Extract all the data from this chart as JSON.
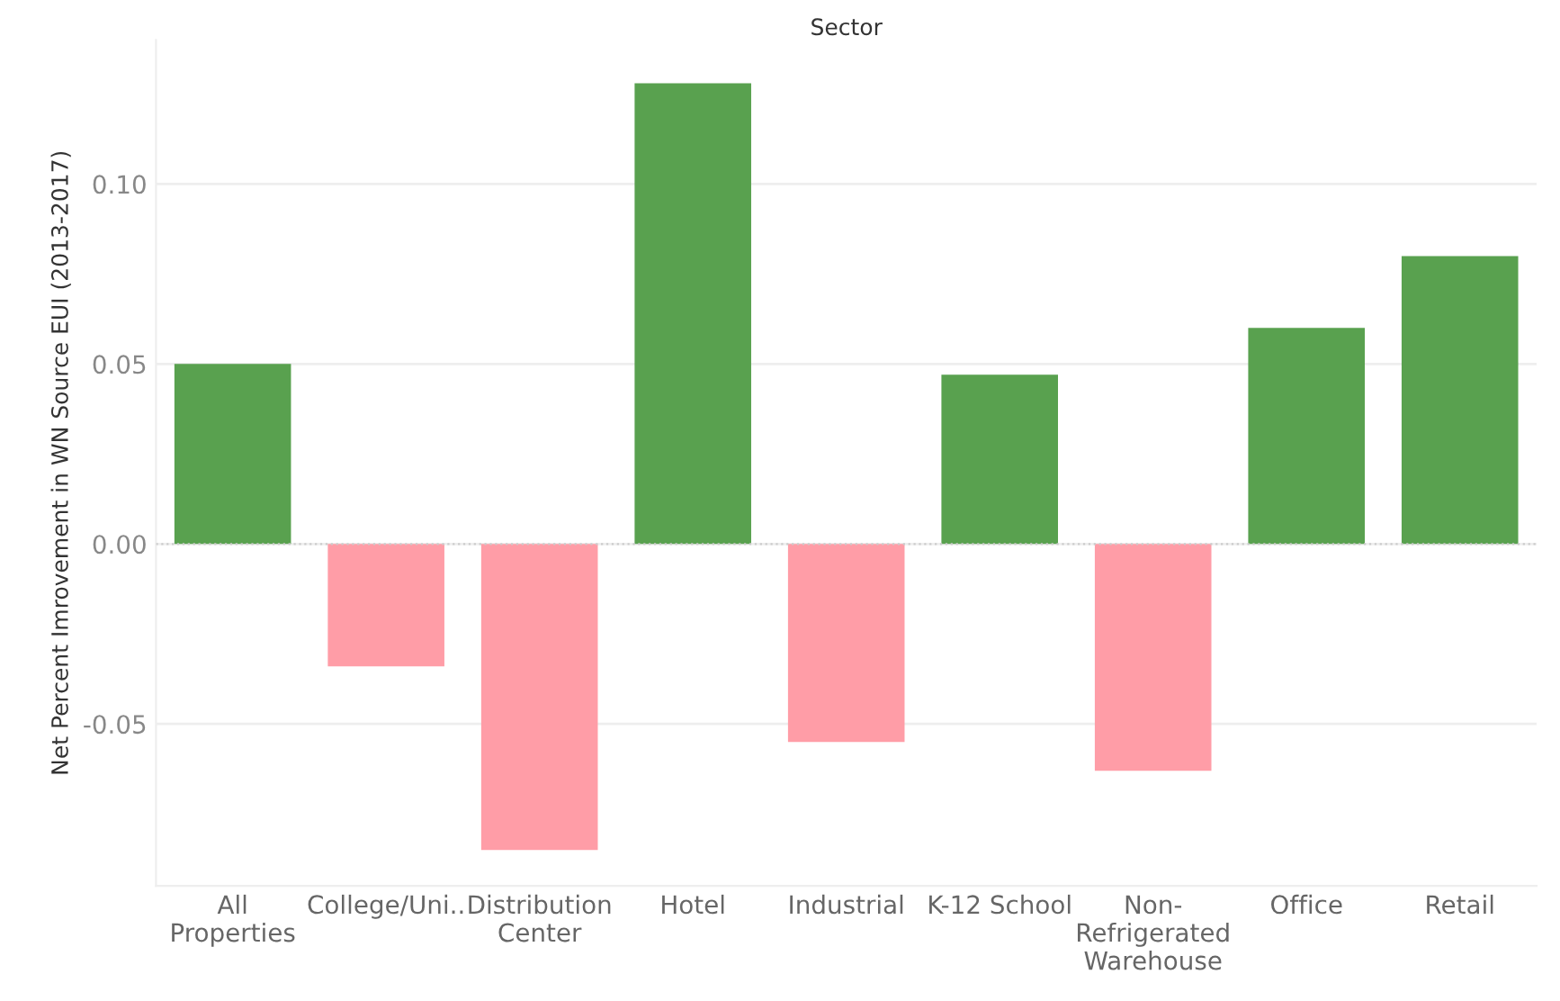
{
  "chart_data": {
    "type": "bar",
    "title": "Sector",
    "ylabel": "Net Percent Imrovement in WN Source EUI (2013-2017)",
    "categories": [
      "All\nProperties",
      "College/Uni..",
      "Distribution\nCenter",
      "Hotel",
      "Industrial",
      "K-12 School",
      "Non-\nRefrigerated\nWarehouse",
      "Office",
      "Retail"
    ],
    "values": [
      0.05,
      -0.034,
      -0.085,
      0.128,
      -0.055,
      0.047,
      -0.063,
      0.06,
      0.08
    ],
    "colors": [
      "#59a14f",
      "#ff9da7",
      "#ff9da7",
      "#59a14f",
      "#ff9da7",
      "#59a14f",
      "#ff9da7",
      "#59a14f",
      "#59a14f"
    ],
    "ylim": [
      -0.095,
      0.14
    ],
    "yticks": [
      {
        "value": -0.05,
        "label": "-0.05"
      },
      {
        "value": 0,
        "label": "0.00"
      },
      {
        "value": 0.05,
        "label": "0.05"
      },
      {
        "value": 0.1,
        "label": "0.10"
      }
    ],
    "grid": "y",
    "legend": false,
    "ref_lines": [
      {
        "axis": "y",
        "value": 0,
        "color": "#cccccc",
        "line_style": "dotted"
      }
    ]
  }
}
